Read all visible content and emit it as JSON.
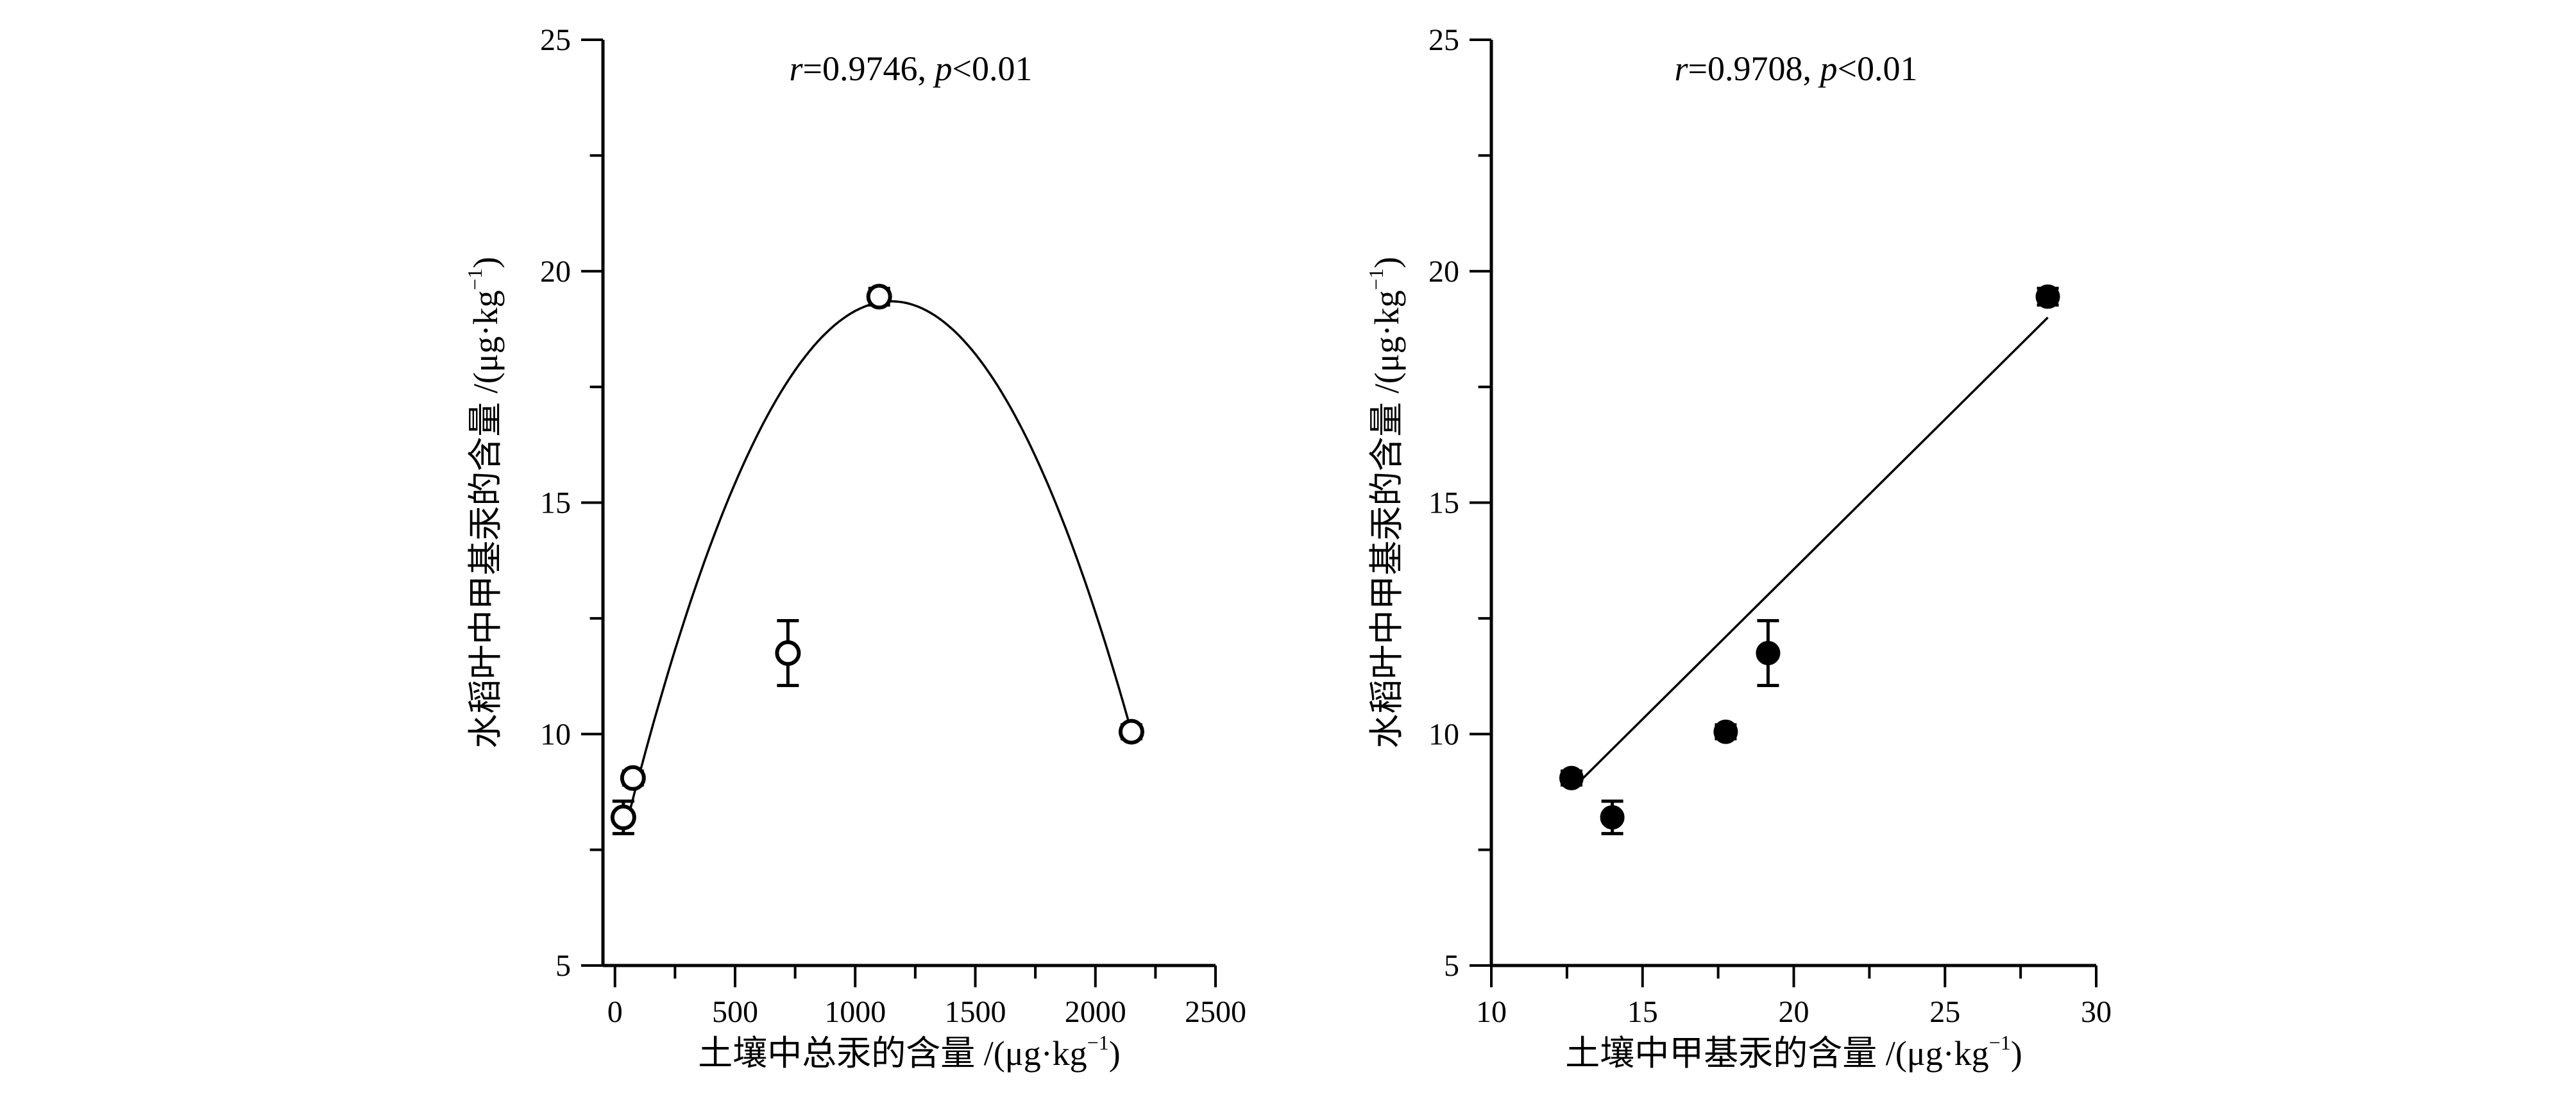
{
  "chart_data": [
    {
      "type": "scatter",
      "marker": "open-circle",
      "xlabel": "土壤中总汞的含量 /(μg·kg",
      "xlabel_unit_sup": "−1",
      "xlabel_close": ")",
      "ylabel": "水稻叶中甲基汞的含量 /(μg·kg",
      "ylabel_unit_sup": "−1",
      "ylabel_close": ")",
      "xlim": [
        -50,
        2500
      ],
      "ylim": [
        5,
        25
      ],
      "xticks": [
        0,
        500,
        1000,
        1500,
        2000,
        2500
      ],
      "yticks": [
        5,
        10,
        15,
        20,
        25
      ],
      "xtick_labels": [
        "0",
        "500",
        "1000",
        "1500",
        "2000",
        "2500"
      ],
      "ytick_labels": [
        "5",
        "10",
        "15",
        "20",
        "25"
      ],
      "annotation": {
        "r_symbol": "r",
        "r_value": "=0.9746, ",
        "p_symbol": "p",
        "p_value": "<0.01"
      },
      "points": [
        {
          "x": 35,
          "y": 8.2,
          "err": 0.35
        },
        {
          "x": 75,
          "y": 9.05,
          "err": 0.15
        },
        {
          "x": 720,
          "y": 11.75,
          "err": 0.7
        },
        {
          "x": 1100,
          "y": 19.45,
          "err": 0.18
        },
        {
          "x": 2150,
          "y": 10.05,
          "err": 0.15
        }
      ],
      "fit": {
        "type": "quadratic",
        "vertex_x": 1150,
        "vertex_y": 19.35,
        "x_range": [
          60,
          2150
        ],
        "y_at_end": 10.05
      }
    },
    {
      "type": "scatter",
      "marker": "filled-circle",
      "xlabel": "土壤中甲基汞的含量 /(μg·kg",
      "xlabel_unit_sup": "−1",
      "xlabel_close": ")",
      "ylabel": "水稻叶中甲基汞的含量 /(μg·kg",
      "ylabel_unit_sup": "−1",
      "ylabel_close": ")",
      "xlim": [
        10,
        30
      ],
      "ylim": [
        5,
        25
      ],
      "xticks": [
        10,
        15,
        20,
        25,
        30
      ],
      "yticks": [
        5,
        10,
        15,
        20,
        25
      ],
      "xtick_labels": [
        "10",
        "15",
        "20",
        "25",
        "30"
      ],
      "ytick_labels": [
        "5",
        "10",
        "15",
        "20",
        "25"
      ],
      "annotation": {
        "r_symbol": "r",
        "r_value": "=0.9708, ",
        "p_symbol": "p",
        "p_value": "<0.01"
      },
      "points": [
        {
          "x": 12.65,
          "y": 9.05,
          "err": 0.15
        },
        {
          "x": 14.0,
          "y": 8.2,
          "err": 0.35
        },
        {
          "x": 17.75,
          "y": 10.05,
          "err": 0.15
        },
        {
          "x": 19.15,
          "y": 11.75,
          "err": 0.7
        },
        {
          "x": 28.4,
          "y": 19.45,
          "err": 0.18
        }
      ],
      "fit": {
        "type": "linear",
        "x_range": [
          12.65,
          28.4
        ],
        "y_range": [
          8.8,
          19.0
        ]
      }
    }
  ]
}
